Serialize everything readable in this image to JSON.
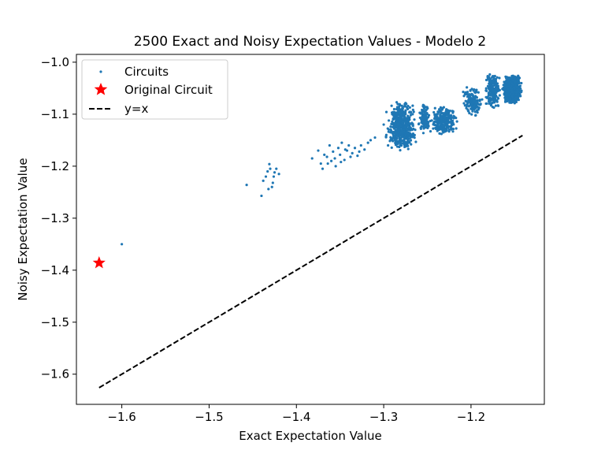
{
  "chart_data": {
    "type": "scatter",
    "title": "2500 Exact and Noisy Expectation Values - Modelo 2",
    "xlabel": "Exact Expectation Value",
    "ylabel": "Noisy Expectation Value",
    "xlim": [
      -1.652,
      -1.116
    ],
    "ylim": [
      -1.658,
      -0.985
    ],
    "xticks": [
      -1.6,
      -1.5,
      -1.4,
      -1.3,
      -1.2
    ],
    "xtick_labels": [
      "−1.6",
      "−1.5",
      "−1.4",
      "−1.3",
      "−1.2"
    ],
    "yticks": [
      -1.6,
      -1.5,
      -1.4,
      -1.3,
      -1.2,
      -1.1,
      -1.0
    ],
    "ytick_labels": [
      "−1.6",
      "−1.5",
      "−1.4",
      "−1.3",
      "−1.2",
      "−1.1",
      "−1.0"
    ],
    "grid": false,
    "legend_position": "upper-left",
    "colors": {
      "circuits": "#1f77b4",
      "original": "#ff0000",
      "identity": "#000000"
    },
    "series": [
      {
        "name": "Circuits",
        "marker": "point",
        "count": 2500,
        "points": [
          [
            -1.6,
            -1.35
          ],
          [
            -1.457,
            -1.236
          ],
          [
            -1.438,
            -1.228
          ],
          [
            -1.435,
            -1.22
          ],
          [
            -1.433,
            -1.21
          ],
          [
            -1.431,
            -1.196
          ],
          [
            -1.43,
            -1.205
          ],
          [
            -1.428,
            -1.24
          ],
          [
            -1.427,
            -1.232
          ],
          [
            -1.425,
            -1.212
          ],
          [
            -1.423,
            -1.205
          ],
          [
            -1.42,
            -1.215
          ],
          [
            -1.44,
            -1.257
          ],
          [
            -1.432,
            -1.244
          ],
          [
            -1.426,
            -1.22
          ],
          [
            -1.382,
            -1.185
          ],
          [
            -1.375,
            -1.17
          ],
          [
            -1.372,
            -1.195
          ],
          [
            -1.37,
            -1.205
          ],
          [
            -1.365,
            -1.182
          ],
          [
            -1.362,
            -1.16
          ],
          [
            -1.36,
            -1.19
          ],
          [
            -1.358,
            -1.172
          ],
          [
            -1.355,
            -1.2
          ],
          [
            -1.352,
            -1.165
          ],
          [
            -1.35,
            -1.178
          ],
          [
            -1.348,
            -1.155
          ],
          [
            -1.345,
            -1.188
          ],
          [
            -1.342,
            -1.17
          ],
          [
            -1.34,
            -1.16
          ],
          [
            -1.336,
            -1.175
          ],
          [
            -1.333,
            -1.165
          ],
          [
            -1.33,
            -1.18
          ],
          [
            -1.326,
            -1.16
          ],
          [
            -1.322,
            -1.168
          ],
          [
            -1.318,
            -1.155
          ],
          [
            -1.315,
            -1.15
          ],
          [
            -1.31,
            -1.145
          ],
          [
            -1.368,
            -1.178
          ],
          [
            -1.356,
            -1.185
          ],
          [
            -1.344,
            -1.168
          ],
          [
            -1.338,
            -1.182
          ],
          [
            -1.328,
            -1.172
          ],
          [
            -1.364,
            -1.195
          ],
          [
            -1.349,
            -1.192
          ],
          [
            -1.3,
            -1.12
          ],
          [
            -1.297,
            -1.14
          ],
          [
            -1.295,
            -1.16
          ],
          [
            -1.292,
            -1.13
          ],
          [
            -1.29,
            -1.15
          ]
        ],
        "clusters": [
          {
            "x_range": [
              -1.3,
              -1.26
            ],
            "y_range": [
              -1.17,
              -1.075
            ],
            "n": 500
          },
          {
            "x_range": [
              -1.262,
              -1.245
            ],
            "y_range": [
              -1.14,
              -1.08
            ],
            "n": 110
          },
          {
            "x_range": [
              -1.248,
              -1.214
            ],
            "y_range": [
              -1.14,
              -1.085
            ],
            "n": 260
          },
          {
            "x_range": [
              -1.212,
              -1.185
            ],
            "y_range": [
              -1.105,
              -1.045
            ],
            "n": 150
          },
          {
            "x_range": [
              -1.185,
              -1.165
            ],
            "y_range": [
              -1.09,
              -1.02
            ],
            "n": 200
          },
          {
            "x_range": [
              -1.165,
              -1.141
            ],
            "y_range": [
              -1.08,
              -1.025
            ],
            "n": 1150
          }
        ]
      },
      {
        "name": "Original Circuit",
        "marker": "star",
        "points": [
          [
            -1.626,
            -1.386
          ]
        ]
      },
      {
        "name": "y=x",
        "marker": "dashed-line",
        "points": [
          [
            -1.626,
            -1.626
          ],
          [
            -1.141,
            -1.141
          ]
        ]
      }
    ],
    "legend": [
      "Circuits",
      "Original Circuit",
      "y=x"
    ]
  }
}
